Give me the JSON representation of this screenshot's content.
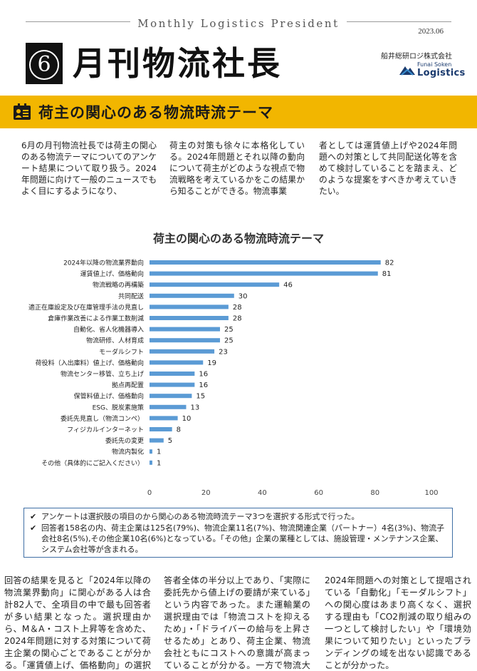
{
  "header": {
    "masthead_en": "Monthly Logistics President",
    "date": "2023.06",
    "issue_number": "6",
    "title": "月刊物流社長",
    "company": "船井総研ロジ株式会社",
    "logo_line1": "Funai Soken",
    "logo_line2": "Logistics"
  },
  "banner": {
    "title": "荷主の関心のある物流時流テーマ",
    "icon": "document-person-icon",
    "color": "#f2b600"
  },
  "intro": {
    "col1": "6月の月刊物流社長では荷主の関心のある物流テーマについてのアンケート結果について取り扱う。2024年問題に向けて一般のニュースでもよく目にするようになり、",
    "col2": "荷主の対策も徐々に本格化している。2024年問題とそれ以降の動向について荷主がどのような視点で物流戦略を考えているかをこの結果から知ることができる。物流事業",
    "col3": "者としては運賃値上げや2024年問題への対策として共同配送化等を含めて検討していることを踏まえ、どのような提案をすべきか考えていきたい。"
  },
  "chart_data": {
    "type": "bar",
    "orientation": "horizontal",
    "title": "荷主の関心のある物流時流テーマ",
    "categories": [
      "2024年以降の物流業界動向",
      "運賃値上げ、価格動向",
      "物流戦略の再構築",
      "共同配送",
      "適正在庫設定及び在庫管理手法の見直し",
      "倉庫作業改善による作業工数削減",
      "自動化、省人化機器導入",
      "物流研修、人材育成",
      "モーダルシフト",
      "荷役料（入出庫料）値上げ、価格動向",
      "物流センター移管、立ち上げ",
      "拠点再配置",
      "保管料値上げ、価格動向",
      "ESG、脱炭素施策",
      "委託先見直し（物流コンペ）",
      "フィジカルインターネット",
      "委託先の変更",
      "物流内製化",
      "その他（具体的にご記入ください）"
    ],
    "values": [
      82,
      81,
      46,
      30,
      28,
      28,
      25,
      25,
      23,
      19,
      16,
      16,
      15,
      13,
      10,
      8,
      5,
      1,
      1
    ],
    "xlim": [
      0,
      100
    ],
    "xticks": [
      "0",
      "20",
      "40",
      "60",
      "80",
      "100"
    ],
    "bar_color": "#5b9bd5",
    "grid": false
  },
  "notes": [
    "アンケートは選択肢の項目のから関心のある物流時流テーマ3つを選択する形式で行った。",
    "回答者158名の内、荷主企業は125名(79%)、物流企業11名(7%)、物流関連企業（パートナー）4名(3%)、物流子会社8名(5%),その他企業10名(6%)となっている。「その他」企業の業種としては、施設管理・メンテナンス企業、システム会社等が含まれる。"
  ],
  "body": {
    "col1": "回答の結果を見ると「2024年以降の物流業界動向」に関心がある人は合計82人で、全項目の中で最も回答者が多い結果となった。選択理由から、M＆A・コスト上昇等を含めた、2024年問題に対する対策について荷主企業の関心ごとであることが分かる。「運賃値上げ、価格動向」の選択は回",
    "col2": "答者全体の半分以上であり、「実際に委託先から値上げの要請が来ている」という内容であった。また運輸業の選択理由では「物流コストを抑えるため」・「ドライバーの給与を上昇させるため」とあり、荷主企業、物流会社ともにコストへの意識が高まっていることが分かる。一方で物流大綱等で",
    "col3": "2024年問題への対策として提唱されている「自動化」「モーダルシフト」への関心度はあまり高くなく、選択する理由も「CO2削減の取り組みの一つとして検討したい」や「環境効果について知りたい」といったブランディングの域を出ない認識であることが分かった。"
  }
}
